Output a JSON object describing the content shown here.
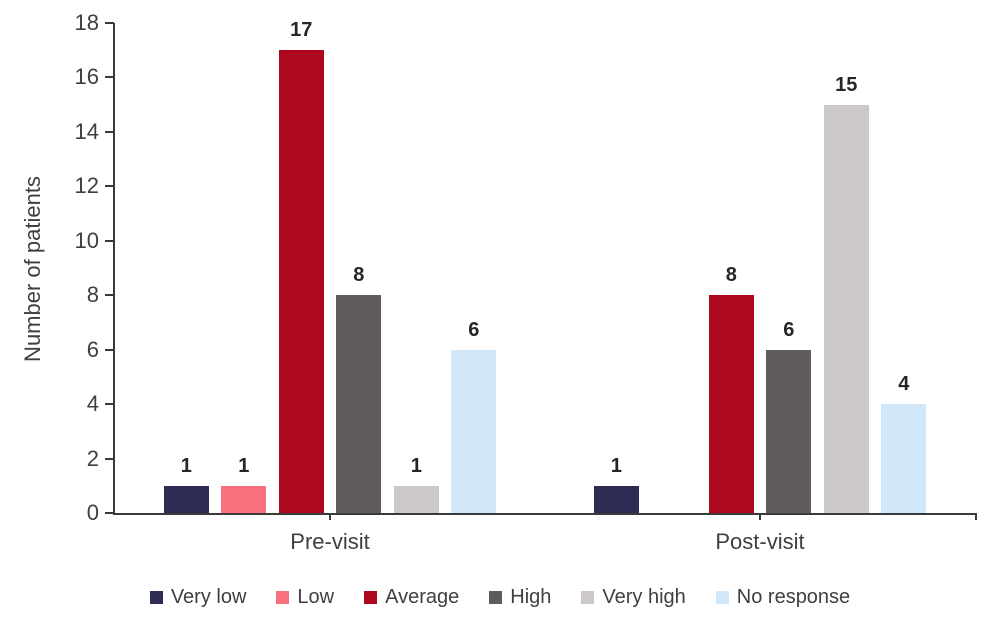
{
  "chart_data": {
    "type": "bar",
    "title": "",
    "xlabel": "",
    "ylabel": "Number of patients",
    "categories": [
      "Pre-visit",
      "Post-visit"
    ],
    "series": [
      {
        "name": "Very low",
        "color": "#2e2c55",
        "values": [
          1,
          1
        ]
      },
      {
        "name": "Low",
        "color": "#f9707f",
        "values": [
          1,
          0
        ]
      },
      {
        "name": "Average",
        "color": "#ae081f",
        "values": [
          17,
          8
        ]
      },
      {
        "name": "High",
        "color": "#605b5d",
        "values": [
          8,
          6
        ]
      },
      {
        "name": "Very high",
        "color": "#ccc8ca",
        "values": [
          1,
          15
        ]
      },
      {
        "name": "No response",
        "color": "#d0e8fa",
        "values": [
          6,
          4
        ]
      }
    ],
    "ylim": [
      0,
      18
    ],
    "yticks": [
      0,
      2,
      4,
      6,
      8,
      10,
      12,
      14,
      16,
      18
    ],
    "grid": false,
    "bar_value_labels": true,
    "legend_position": "bottom",
    "axis_color": "#3a3a3a",
    "label_color": "#3f3f3f",
    "value_label_color": "#262626"
  }
}
